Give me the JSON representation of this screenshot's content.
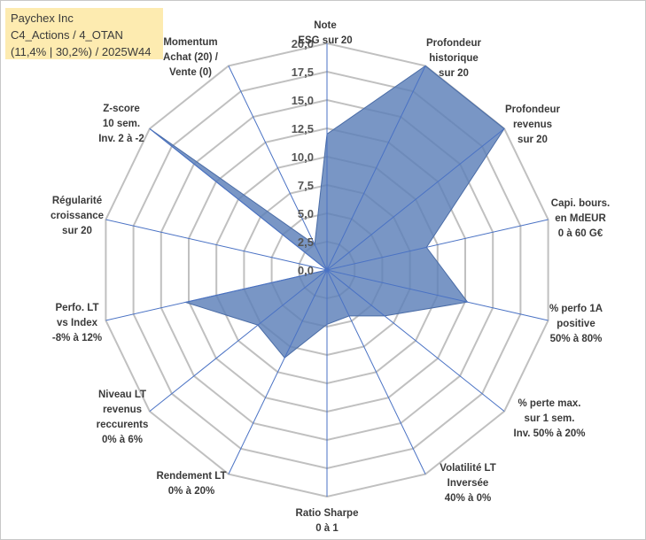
{
  "title": {
    "line1": "Paychex Inc",
    "line2": "C4_Actions / 4_OTAN",
    "line3": "(11,4% | 30,2%) / 2025W44"
  },
  "colors": {
    "series_fill": "#5b7fb8",
    "series_stroke": "#4a6ca6",
    "spoke": "#4a72c4",
    "grid": "#c0c0c0"
  },
  "chart_data": {
    "type": "radar",
    "rmin": 0,
    "rmax": 20,
    "ticks": [
      "0,0",
      "2,5",
      "5,0",
      "7,5",
      "10,0",
      "12,5",
      "15,0",
      "17,5",
      "20,0"
    ],
    "tick_values": [
      0,
      2.5,
      5,
      7.5,
      10,
      12.5,
      15,
      17.5,
      20
    ],
    "axes": [
      [
        "Note",
        "ESG sur 20"
      ],
      [
        "Profondeur",
        "historique",
        "sur 20"
      ],
      [
        "Profondeur",
        "revenus",
        "sur 20"
      ],
      [
        "Capi. bours.",
        "en MdEUR",
        "0 à 60 G€"
      ],
      [
        "% perfo 1A",
        "positive",
        "50% à 80%"
      ],
      [
        "% perte max.",
        "sur 1 sem.",
        "Inv. 50% à 20%"
      ],
      [
        "Volatilité LT",
        "Inversée",
        "40% à 0%"
      ],
      [
        "Ratio Sharpe",
        "0 à 1"
      ],
      [
        "Rendement LT",
        "0% à 20%"
      ],
      [
        "Niveau LT",
        "revenus",
        "reccurents",
        "0% à 6%"
      ],
      [
        "Perfo. LT",
        "vs Index",
        "-8% à 12%"
      ],
      [
        "Régularité",
        "croissance",
        "sur 20"
      ],
      [
        "Z-score",
        "10 sem.",
        "Inv. 2 à -2"
      ],
      [
        "Momentum",
        "Achat (20) /",
        "Vente (0)"
      ]
    ],
    "series": [
      {
        "name": "Paychex Inc",
        "values": [
          12,
          20,
          20,
          9,
          12.7,
          6.5,
          4.5,
          4.8,
          8.6,
          7.8,
          12.8,
          0,
          20,
          2.5
        ]
      }
    ]
  }
}
